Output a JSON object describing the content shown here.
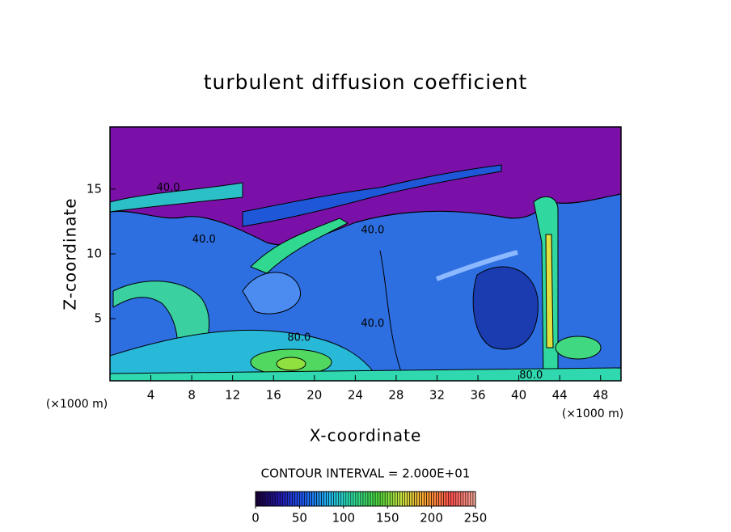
{
  "chart_data": {
    "type": "contour",
    "title": "turbulent diffusion coefficient",
    "xlabel": "X-coordinate",
    "ylabel": "Z-coordinate",
    "xunit_left": "(×1000 m)",
    "xunit_right": "(×1000 m)",
    "xlim": [
      0,
      50
    ],
    "ylim": [
      0.2,
      19.8
    ],
    "xticks": [
      4,
      8,
      12,
      16,
      20,
      24,
      28,
      32,
      36,
      40,
      44,
      48
    ],
    "yticks": [
      5,
      10,
      15
    ],
    "contour_interval": "CONTOUR INTERVAL = 2.000E+01",
    "contour_labels": [
      {
        "text": "40.0",
        "x": 5.7,
        "z": 15.1
      },
      {
        "text": "40.0",
        "x": 9.2,
        "z": 11.1
      },
      {
        "text": "40.0",
        "x": 25.7,
        "z": 11.8
      },
      {
        "text": "40.0",
        "x": 25.7,
        "z": 4.6
      },
      {
        "text": "80.0",
        "x": 18.5,
        "z": 3.5
      },
      {
        "text": "80.0",
        "x": 41.2,
        "z": 0.6
      }
    ],
    "colorbar": {
      "lim": [
        0,
        250
      ],
      "ticks": [
        0,
        50,
        100,
        150,
        200,
        250
      ],
      "colors": [
        "#1a0038",
        "#2418b0",
        "#1e5cf0",
        "#20b8f0",
        "#30e0a0",
        "#50e040",
        "#c8e040",
        "#ffa030",
        "#ff5050",
        "#ffb0a0"
      ]
    }
  }
}
